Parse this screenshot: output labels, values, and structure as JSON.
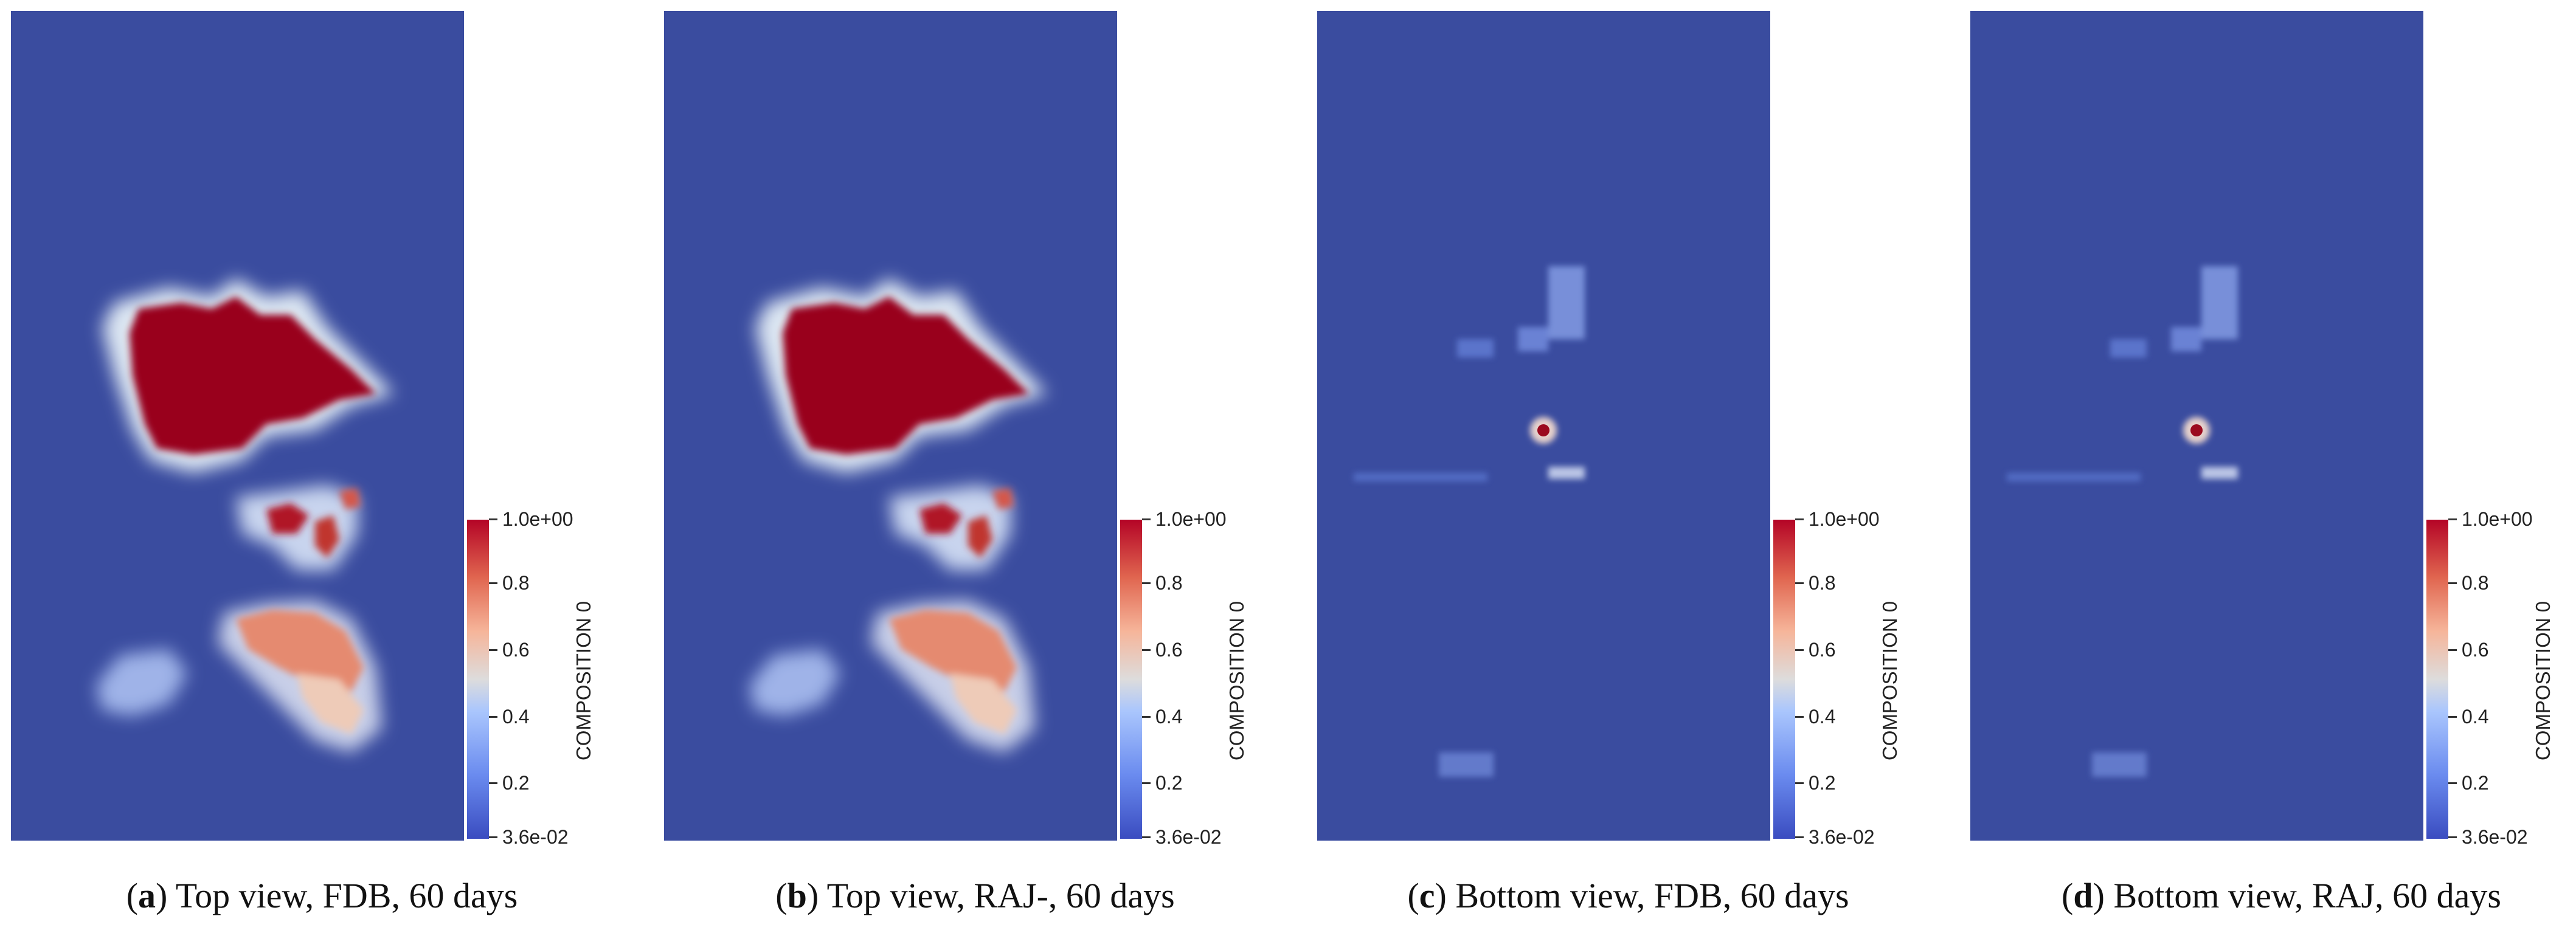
{
  "figure": {
    "panels": [
      {
        "letter": "a",
        "caption": "Top view, FDB, 60 days",
        "view": "top",
        "colorbar": {
          "title": "COMPOSITION 0",
          "ticks": [
            "1.0e+00",
            "0.8",
            "0.6",
            "0.4",
            "0.2",
            "3.6e-02"
          ]
        }
      },
      {
        "letter": "b",
        "caption": "Top view, RAJ-, 60 days",
        "view": "top",
        "colorbar": {
          "title": "COMPOSITION 0",
          "ticks": [
            "1.0e+00",
            "0.8",
            "0.6",
            "0.4",
            "0.2",
            "3.6e-02"
          ]
        }
      },
      {
        "letter": "c",
        "caption": "Bottom view, FDB, 60 days",
        "view": "bottom",
        "colorbar": {
          "title": "COMPOSITION 0",
          "ticks": [
            "1.0e+00",
            "0.8",
            "0.6",
            "0.4",
            "0.2",
            "3.6e-02"
          ]
        }
      },
      {
        "letter": "d",
        "caption": "Bottom view, RAJ, 60 days",
        "view": "bottom",
        "colorbar": {
          "title": "COMPOSITION 0",
          "ticks": [
            "1.0e+00",
            "0.8",
            "0.6",
            "0.4",
            "0.2",
            "3.6e-02"
          ]
        }
      }
    ],
    "colormap": {
      "low": "#3a4cc0",
      "mid": "#dddcdc",
      "high": "#b40426",
      "background": "#3a4c9f"
    }
  }
}
